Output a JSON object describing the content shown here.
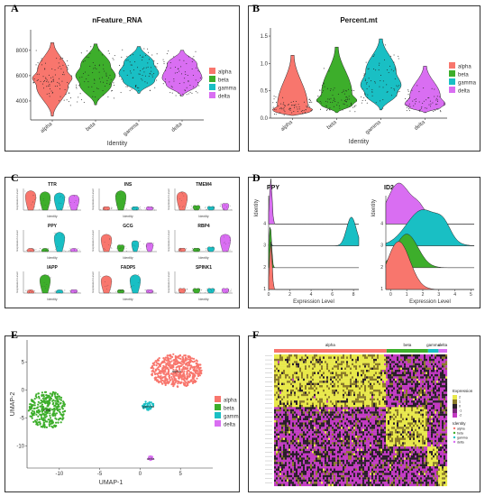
{
  "labels": {
    "A": "A",
    "B": "B",
    "C": "C",
    "D": "D",
    "E": "E",
    "F": "F"
  },
  "colors": {
    "alpha": "#F8766D",
    "beta": "#3DAE2B",
    "gamma": "#19BFC4",
    "delta": "#D96EF2"
  },
  "legend_entries": [
    "alpha",
    "beta",
    "gamma",
    "delta"
  ],
  "chart_data": [
    {
      "panel": "A",
      "type": "violin",
      "title": "nFeature_RNA",
      "xlabel": "Identity",
      "ylabel": "",
      "categories": [
        "alpha",
        "beta",
        "gamma",
        "delta"
      ],
      "yticks": [
        "4000",
        "6000",
        "8000"
      ],
      "ylim": [
        2500,
        9200
      ],
      "series": [
        {
          "name": "alpha",
          "min": 2800,
          "q1": 5200,
          "median": 5800,
          "q3": 6400,
          "max": 8600
        },
        {
          "name": "beta",
          "min": 3700,
          "q1": 5300,
          "median": 6000,
          "q3": 6800,
          "max": 8500
        },
        {
          "name": "gamma",
          "min": 4600,
          "q1": 5600,
          "median": 6200,
          "q3": 7000,
          "max": 8300
        },
        {
          "name": "delta",
          "min": 4400,
          "q1": 5300,
          "median": 5800,
          "q3": 6900,
          "max": 8000
        }
      ]
    },
    {
      "panel": "B",
      "type": "violin",
      "title": "Percent.mt",
      "xlabel": "Identity",
      "ylabel": "",
      "categories": [
        "alpha",
        "beta",
        "gamma",
        "delta"
      ],
      "yticks": [
        "0.0",
        "0.5",
        "1.0",
        "1.5"
      ],
      "ylim": [
        0,
        1.55
      ],
      "series": [
        {
          "name": "alpha",
          "min": 0.05,
          "q1": 0.1,
          "median": 0.15,
          "q3": 0.22,
          "max": 1.15
        },
        {
          "name": "beta",
          "min": 0.1,
          "q1": 0.25,
          "median": 0.32,
          "q3": 0.45,
          "max": 1.3
        },
        {
          "name": "gamma",
          "min": 0.15,
          "q1": 0.45,
          "median": 0.6,
          "q3": 0.85,
          "max": 1.45
        },
        {
          "name": "delta",
          "min": 0.1,
          "q1": 0.2,
          "median": 0.25,
          "q3": 0.4,
          "max": 0.95
        }
      ]
    },
    {
      "panel": "C",
      "type": "violin-grid",
      "xlabel": "Identity",
      "ylabel": "Expression Level",
      "genes": [
        {
          "name": "TTR",
          "levels": [
            0.9,
            0.85,
            0.8,
            0.7
          ]
        },
        {
          "name": "INS",
          "levels": [
            0.1,
            0.9,
            0.1,
            0.1
          ]
        },
        {
          "name": "TMEM4",
          "levels": [
            0.85,
            0.2,
            0.15,
            0.3
          ]
        },
        {
          "name": "PPY",
          "levels": [
            0.05,
            0.05,
            0.9,
            0.05
          ]
        },
        {
          "name": "GCG",
          "levels": [
            0.8,
            0.3,
            0.5,
            0.4
          ]
        },
        {
          "name": "RBP4",
          "levels": [
            0.1,
            0.1,
            0.2,
            0.8
          ]
        },
        {
          "name": "IAPP",
          "levels": [
            0.05,
            0.85,
            0.05,
            0.1
          ]
        },
        {
          "name": "FADP5",
          "levels": [
            0.8,
            0.1,
            0.85,
            0.1
          ]
        },
        {
          "name": "SPINK1",
          "levels": [
            0.2,
            0.2,
            0.2,
            0.2
          ]
        }
      ]
    },
    {
      "panel": "D",
      "type": "ridgeline",
      "xlabel": "Expression Level",
      "ylabel": "Identity",
      "categories": [
        "1",
        "2",
        "3",
        "4"
      ],
      "plots": [
        {
          "title": "PPY",
          "xticks": [
            "0",
            "2",
            "4",
            "6",
            "8"
          ],
          "xlim": [
            0,
            8.5
          ],
          "series": [
            {
              "name": "alpha",
              "mode": 0.2,
              "height": 1.0
            },
            {
              "name": "beta",
              "mode": 0.15,
              "height": 0.9
            },
            {
              "name": "gamma",
              "mode": 7.8,
              "height": 0.6
            },
            {
              "name": "delta",
              "mode": 0.2,
              "height": 0.95
            }
          ]
        },
        {
          "title": "ID2",
          "xticks": [
            "0",
            "1",
            "2",
            "3",
            "4",
            "5"
          ],
          "xlim": [
            -0.3,
            5.2
          ],
          "series": [
            {
              "name": "alpha",
              "mode": 0.5,
              "height": 1.0
            },
            {
              "name": "beta",
              "mode": 1.0,
              "height": 0.7
            },
            {
              "name": "gamma",
              "mode": 2.0,
              "height": 0.75
            },
            {
              "name": "delta",
              "mode": 0.5,
              "height": 0.85
            }
          ]
        }
      ]
    },
    {
      "panel": "E",
      "type": "scatter",
      "xlabel": "UMAP-1",
      "ylabel": "UMAP-2",
      "xticks": [
        "-10",
        "-5",
        "0",
        "5"
      ],
      "xlim": [
        -14,
        9
      ],
      "yticks": [
        "-10",
        "-5",
        "0",
        "5"
      ],
      "ylim": [
        -14,
        9
      ],
      "clusters": [
        {
          "name": "alpha",
          "label": "alpha",
          "cx": 4.5,
          "cy": 3.5,
          "rx": 3.2,
          "ry": 3.0,
          "n": 520
        },
        {
          "name": "beta",
          "label": "beta",
          "cx": -11.5,
          "cy": -3.5,
          "rx": 2.3,
          "ry": 3.4,
          "n": 330
        },
        {
          "name": "gamma",
          "label": "gamma",
          "cx": 1.0,
          "cy": -2.8,
          "rx": 0.7,
          "ry": 0.8,
          "n": 45
        },
        {
          "name": "delta",
          "label": "delta",
          "cx": 1.3,
          "cy": -12.2,
          "rx": 0.3,
          "ry": 0.4,
          "n": 16
        }
      ]
    },
    {
      "panel": "F",
      "type": "heatmap",
      "column_groups": [
        {
          "name": "alpha",
          "fraction": 0.65
        },
        {
          "name": "beta",
          "fraction": 0.24
        },
        {
          "name": "gamma",
          "fraction": 0.06
        },
        {
          "name": "delta",
          "fraction": 0.05
        }
      ],
      "legend_title": "Expression",
      "legend_ticks": [
        "2",
        "1",
        "0",
        "-1",
        "-2"
      ],
      "identity_title": "Identity"
    }
  ]
}
